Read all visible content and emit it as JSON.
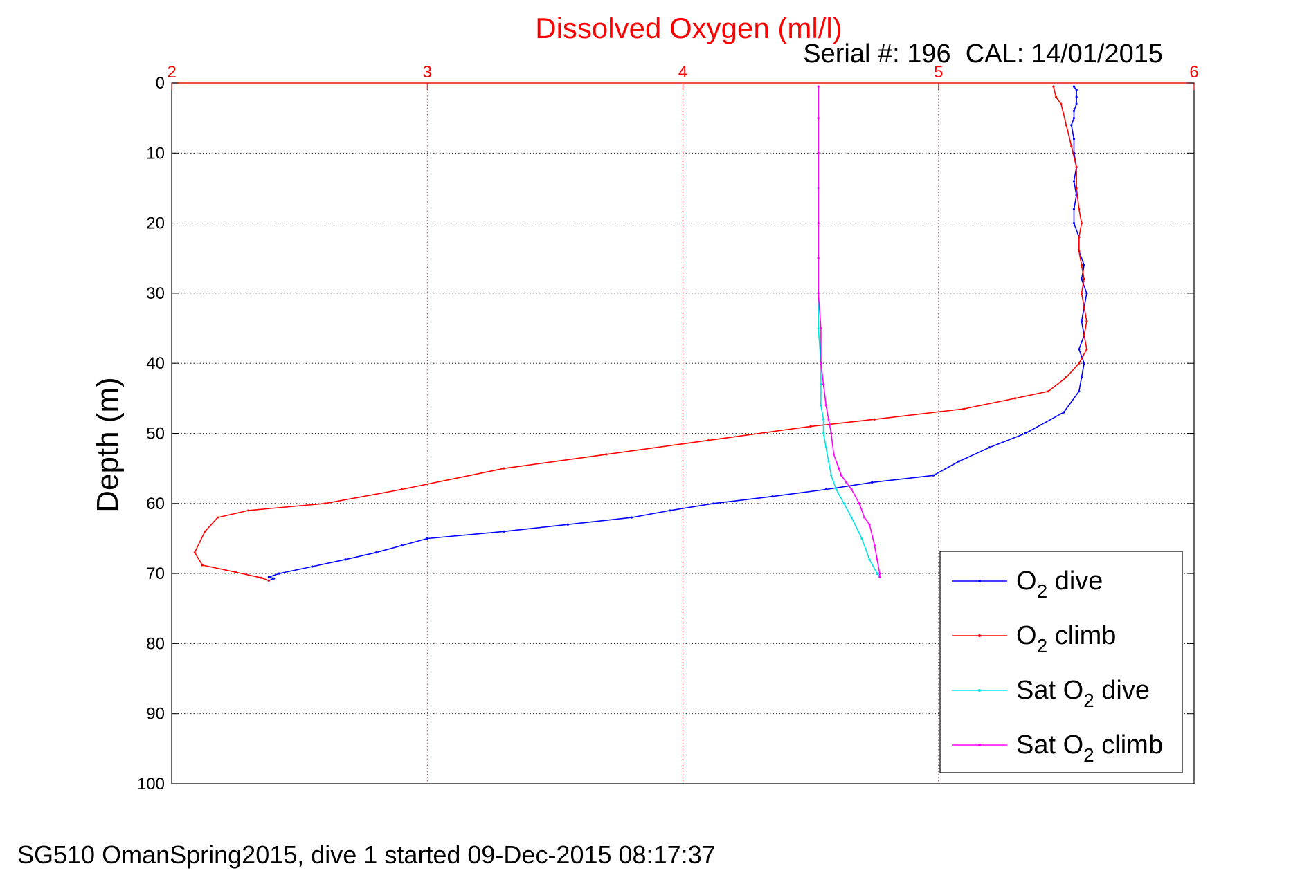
{
  "chart_data": {
    "type": "line",
    "title": "Dissolved Oxygen (ml/l)",
    "subtitle": "Serial #: 196  CAL: 14/01/2015",
    "ylabel": "Depth (m)",
    "xlabel": "",
    "xlim": [
      2,
      6
    ],
    "ylim": [
      0,
      100
    ],
    "y_reversed": true,
    "x_axis_position": "top",
    "x_ticks": [
      2,
      3,
      4,
      5,
      6
    ],
    "x_tick_labels": [
      "2",
      "3",
      "4",
      "5",
      "6"
    ],
    "y_ticks": [
      0,
      10,
      20,
      30,
      40,
      50,
      60,
      70,
      80,
      90,
      100
    ],
    "y_tick_labels": [
      "0",
      "10",
      "20",
      "30",
      "40",
      "50",
      "60",
      "70",
      "80",
      "90",
      "100"
    ],
    "grid": true,
    "legend_position": "bottom-right",
    "colors": {
      "title": "#ff0000",
      "xaxis": "#ff0000",
      "grid": "#888888"
    },
    "series": [
      {
        "name": "O2 dive",
        "legend_label": {
          "pre": "O",
          "sub": "2",
          "post": " dive"
        },
        "color": "#0000ff",
        "x": [
          5.53,
          5.54,
          5.54,
          5.54,
          5.53,
          5.53,
          5.52,
          5.53,
          5.53,
          5.54,
          5.53,
          5.54,
          5.53,
          5.53,
          5.55,
          5.55,
          5.57,
          5.56,
          5.58,
          5.57,
          5.56,
          5.57,
          5.55,
          5.57,
          5.56,
          5.55,
          5.49,
          5.34,
          5.2,
          5.08,
          4.98,
          4.74,
          4.56,
          4.35,
          4.12,
          3.95,
          3.8,
          3.55,
          3.3,
          3.0,
          2.9,
          2.8,
          2.68,
          2.55,
          2.42,
          2.38,
          2.4,
          2.38
        ],
        "y": [
          0.5,
          1,
          2,
          3,
          4,
          5,
          6,
          8,
          10,
          12,
          14,
          16,
          18,
          20,
          22,
          24,
          26,
          28,
          30,
          32,
          34,
          36,
          38,
          40,
          42,
          44,
          47,
          50,
          52,
          54,
          56,
          57,
          58,
          59,
          60,
          61,
          62,
          63,
          64,
          65,
          66,
          67,
          68,
          69,
          70,
          70.5,
          70.7,
          71
        ]
      },
      {
        "name": "O2 climb",
        "legend_label": {
          "pre": "O",
          "sub": "2",
          "post": " climb"
        },
        "color": "#ff0000",
        "x": [
          2.38,
          2.35,
          2.25,
          2.12,
          2.09,
          2.13,
          2.18,
          2.3,
          2.6,
          2.9,
          3.3,
          3.7,
          4.1,
          4.5,
          4.75,
          5.1,
          5.3,
          5.43,
          5.5,
          5.55,
          5.58,
          5.57,
          5.58,
          5.57,
          5.56,
          5.57,
          5.56,
          5.55,
          5.55,
          5.56,
          5.55,
          5.54,
          5.54,
          5.52,
          5.5,
          5.48,
          5.46,
          5.45
        ],
        "y": [
          71,
          70.6,
          69.8,
          68.8,
          67,
          64,
          62,
          61,
          60,
          58,
          55,
          53,
          51,
          49,
          48,
          46.5,
          45,
          44,
          42,
          40,
          38,
          36,
          34,
          32,
          30,
          28,
          26,
          24,
          22,
          20,
          18,
          15,
          12,
          9,
          6,
          3,
          2,
          0.5
        ]
      },
      {
        "name": "Sat O2 dive",
        "legend_label": {
          "pre": "Sat O",
          "sub": "2",
          "post": " dive"
        },
        "color": "#00e5e5",
        "x": [
          4.53,
          4.53,
          4.53,
          4.53,
          4.53,
          4.53,
          4.53,
          4.53,
          4.54,
          4.54,
          4.54,
          4.55,
          4.55,
          4.56,
          4.57,
          4.58,
          4.6,
          4.63,
          4.66,
          4.7,
          4.73,
          4.76,
          4.77
        ],
        "y": [
          0.5,
          5,
          10,
          15,
          20,
          25,
          30,
          35,
          40,
          43,
          46,
          48,
          50,
          52,
          54,
          56,
          58,
          60,
          62,
          65,
          68,
          70,
          70.5
        ]
      },
      {
        "name": "Sat O2 climb",
        "legend_label": {
          "pre": "Sat O",
          "sub": "2",
          "post": " climb"
        },
        "color": "#ff00ff",
        "x": [
          4.77,
          4.77,
          4.76,
          4.75,
          4.73,
          4.71,
          4.69,
          4.66,
          4.64,
          4.62,
          4.61,
          4.59,
          4.58,
          4.57,
          4.56,
          4.55,
          4.54,
          4.54,
          4.53,
          4.53,
          4.53,
          4.53,
          4.53,
          4.53
        ],
        "y": [
          70.5,
          70,
          68,
          66,
          63,
          62,
          60,
          58,
          57,
          56,
          55,
          53,
          50,
          48,
          46,
          43,
          40,
          35,
          30,
          25,
          20,
          10,
          5,
          0.5
        ]
      }
    ]
  },
  "footer": "SG510 OmanSpring2015, dive 1 started 09-Dec-2015 08:17:37"
}
